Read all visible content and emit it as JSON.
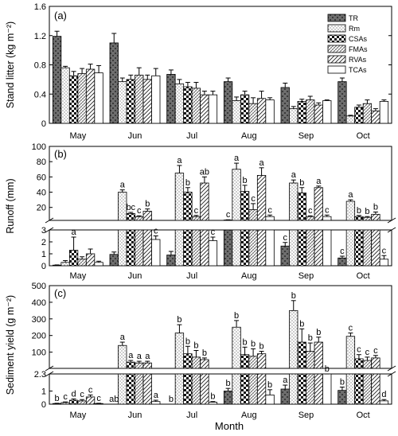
{
  "figure": {
    "xlabel": "Month"
  },
  "chart_data": [
    {
      "panel": "(a)",
      "type": "bar",
      "ylabel": "Stand litter (kg m⁻²)",
      "ylim": [
        0,
        1.6
      ],
      "yticks": [
        0,
        0.4,
        0.8,
        1.2,
        1.6
      ],
      "categories": [
        "May",
        "Jun",
        "Jul",
        "Aug",
        "Sep",
        "Oct"
      ],
      "legend_position": "top-right",
      "series": [
        {
          "name": "TR",
          "values": [
            1.19,
            1.1,
            0.67,
            0.57,
            0.49,
            0.57
          ],
          "errors": [
            0.07,
            0.13,
            0.06,
            0.05,
            0.06,
            0.05
          ]
        },
        {
          "name": "Rm",
          "values": [
            0.76,
            0.57,
            0.54,
            0.31,
            0.2,
            0.1
          ],
          "errors": [
            0.02,
            0.05,
            0.06,
            0.05,
            0.03,
            0.01
          ]
        },
        {
          "name": "CSAs",
          "values": [
            0.65,
            0.6,
            0.5,
            0.39,
            0.3,
            0.22
          ],
          "errors": [
            0.06,
            0.06,
            0.06,
            0.05,
            0.03,
            0.03
          ]
        },
        {
          "name": "FMAs",
          "values": [
            0.68,
            0.66,
            0.48,
            0.27,
            0.32,
            0.27
          ],
          "errors": [
            0.07,
            0.1,
            0.08,
            0.08,
            0.05,
            0.05
          ]
        },
        {
          "name": "RVAs",
          "values": [
            0.74,
            0.6,
            0.39,
            0.34,
            0.25,
            0.17
          ],
          "errors": [
            0.07,
            0.06,
            0.05,
            0.1,
            0.03,
            0.03
          ]
        },
        {
          "name": "TCAs",
          "values": [
            0.69,
            0.65,
            0.39,
            0.32,
            0.31,
            0.3
          ],
          "errors": [
            0.1,
            0.1,
            0.05,
            0.03,
            0.01,
            0.02
          ]
        }
      ]
    },
    {
      "panel": "(b)",
      "type": "bar",
      "ylabel": "Runoff (mm)",
      "broken_axis": true,
      "ylim_lower": [
        0,
        3
      ],
      "ylim_upper": [
        3,
        100
      ],
      "yticks_lower": [
        0,
        1,
        2,
        3
      ],
      "yticks_upper": [
        20,
        40,
        60,
        80,
        100
      ],
      "categories": [
        "May",
        "Jun",
        "Jul",
        "Aug",
        "Sep",
        "Oct"
      ],
      "series": [
        {
          "name": "TR",
          "values": [
            0.05,
            0.95,
            0.9,
            3.5,
            1.65,
            0.65
          ],
          "errors": [
            0.02,
            0.2,
            0.3,
            0.3,
            0.3,
            0.15
          ]
        },
        {
          "name": "Rm",
          "values": [
            0.28,
            40,
            65,
            70,
            52,
            28
          ],
          "errors": [
            0.15,
            3,
            10,
            8,
            4,
            2
          ]
        },
        {
          "name": "CSAs",
          "values": [
            1.3,
            12,
            40,
            41,
            39,
            8
          ],
          "errors": [
            1.1,
            1.5,
            6,
            8,
            7,
            1.5
          ]
        },
        {
          "name": "FMAs",
          "values": [
            0.55,
            8,
            8,
            17,
            8,
            7
          ],
          "errors": [
            0.2,
            1,
            1.5,
            8,
            1,
            1
          ]
        },
        {
          "name": "RVAs",
          "values": [
            1.0,
            15,
            52,
            62,
            46,
            11
          ],
          "errors": [
            0.4,
            3,
            8,
            10,
            2,
            3
          ]
        },
        {
          "name": "TCAs",
          "values": [
            0.28,
            2.2,
            2.1,
            8,
            8,
            0.55
          ],
          "errors": [
            0.1,
            0.3,
            0.3,
            2,
            2,
            0.3
          ]
        }
      ],
      "significance_letters": [
        [
          "",
          "",
          "a",
          "",
          "",
          ""
        ],
        [
          "",
          "a",
          "bc",
          "c",
          "b",
          "c"
        ],
        [
          "",
          "a",
          "b",
          "c",
          "ab",
          "c"
        ],
        [
          "c",
          "a",
          "b",
          "c",
          "a",
          "c"
        ],
        [
          "c",
          "a",
          "b",
          "c",
          "a",
          "c"
        ],
        [
          "c",
          "a",
          "b",
          "b",
          "b",
          "c"
        ]
      ]
    },
    {
      "panel": "(c)",
      "type": "bar",
      "ylabel": "Sediment yield (g m⁻²)",
      "broken_axis": true,
      "ylim_lower": [
        0,
        2.3
      ],
      "ylim_upper": [
        2.3,
        500
      ],
      "yticks_lower": [
        0,
        1,
        2.3
      ],
      "yticks_upper": [
        100,
        200,
        300,
        400,
        500
      ],
      "categories": [
        "May",
        "Jun",
        "Jul",
        "Aug",
        "Sep",
        "Oct"
      ],
      "series": [
        {
          "name": "TR",
          "values": [
            0.05,
            0.0,
            0.0,
            1.0,
            1.15,
            1.05
          ],
          "errors": [
            0.02,
            0,
            0,
            0.2,
            0.3,
            0.25
          ]
        },
        {
          "name": "Rm",
          "values": [
            0.12,
            140,
            215,
            250,
            350,
            195
          ],
          "errors": [
            0.05,
            20,
            50,
            40,
            60,
            20
          ]
        },
        {
          "name": "CSAs",
          "values": [
            0.3,
            40,
            90,
            85,
            160,
            60
          ],
          "errors": [
            0.1,
            10,
            45,
            45,
            80,
            25
          ]
        },
        {
          "name": "FMAs",
          "values": [
            0.25,
            35,
            70,
            75,
            105,
            50
          ],
          "errors": [
            0.1,
            10,
            40,
            45,
            50,
            20
          ]
        },
        {
          "name": "RVAs",
          "values": [
            0.55,
            35,
            55,
            90,
            160,
            65
          ],
          "errors": [
            0.15,
            10,
            10,
            15,
            30,
            15
          ]
        },
        {
          "name": "TCAs",
          "values": [
            0.05,
            0.2,
            0.15,
            0.7,
            2.3,
            0.25
          ],
          "errors": [
            0.02,
            0.1,
            0.05,
            0.4,
            0.3,
            0.1
          ]
        }
      ],
      "significance_letters": [
        [
          "b",
          "c",
          "d",
          "c",
          "c",
          "c"
        ],
        [
          "ab",
          "a",
          "a",
          "a",
          "a",
          "a"
        ],
        [
          "b",
          "b",
          "b",
          "b",
          "b",
          "b"
        ],
        [
          "b",
          "b",
          "b",
          "b",
          "b",
          "b"
        ],
        [
          "a",
          "b",
          "b",
          "b",
          "b",
          "b"
        ],
        [
          "b",
          "c",
          "c",
          "c",
          "c",
          "d"
        ]
      ]
    }
  ]
}
